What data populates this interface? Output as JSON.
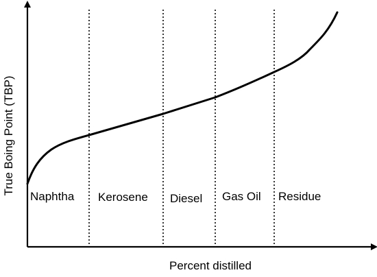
{
  "diagram": {
    "y_axis_label": "True Boing Point (TBP)",
    "x_axis_label": "Percent distilled",
    "regions": [
      {
        "name": "naphtha",
        "label": "Naphtha"
      },
      {
        "name": "kerosene",
        "label": "Kerosene"
      },
      {
        "name": "diesel",
        "label": "Diesel"
      },
      {
        "name": "gas-oil",
        "label": "Gas Oil"
      },
      {
        "name": "residue",
        "label": "Residue"
      }
    ],
    "colors": {
      "line": "#000000",
      "background": "#ffffff"
    }
  }
}
